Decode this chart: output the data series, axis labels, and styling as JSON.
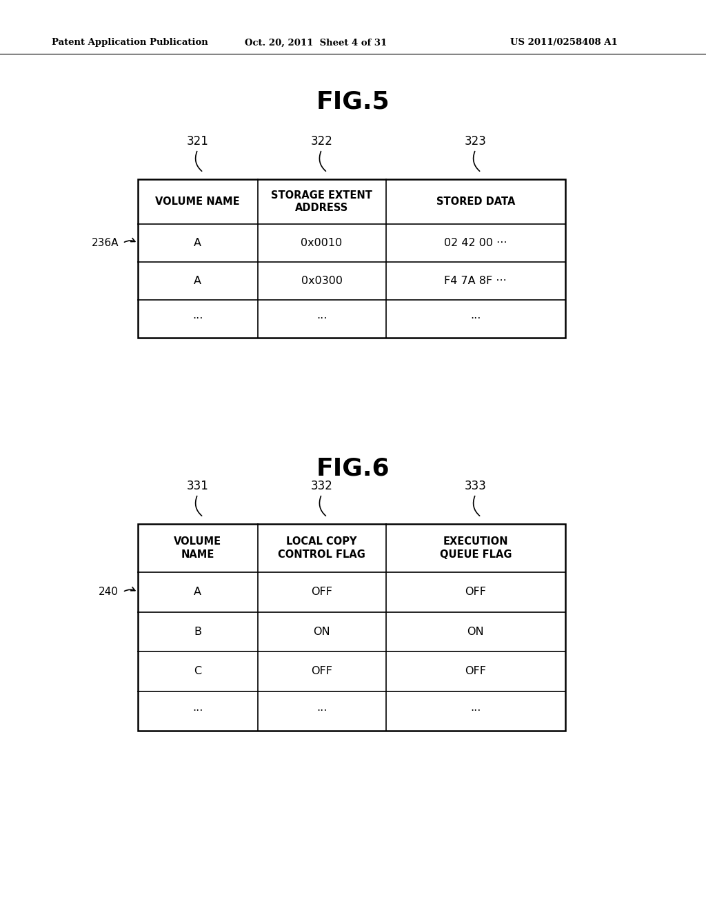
{
  "bg_color": "#ffffff",
  "header_text": "Patent Application Publication",
  "header_date": "Oct. 20, 2011  Sheet 4 of 31",
  "header_patent": "US 2011/0258408 A1",
  "fig5_title": "FIG.5",
  "fig5_col_labels": [
    "321",
    "322",
    "323"
  ],
  "fig5_header": [
    "VOLUME NAME",
    "STORAGE EXTENT\nADDRESS",
    "STORED DATA"
  ],
  "fig5_rows": [
    [
      "A",
      "0x0010",
      "02 42 00 ···"
    ],
    [
      "A",
      "0x0300",
      "F4 7A 8F ···"
    ],
    [
      "···",
      "···",
      "···"
    ]
  ],
  "fig5_label": "236A",
  "fig6_title": "FIG.6",
  "fig6_col_labels": [
    "331",
    "332",
    "333"
  ],
  "fig6_header": [
    "VOLUME\nNAME",
    "LOCAL COPY\nCONTROL FLAG",
    "EXECUTION\nQUEUE FLAG"
  ],
  "fig6_rows": [
    [
      "A",
      "OFF",
      "OFF"
    ],
    [
      "B",
      "ON",
      "ON"
    ],
    [
      "C",
      "OFF",
      "OFF"
    ],
    [
      "···",
      "···",
      "···"
    ]
  ],
  "fig6_label": "240"
}
